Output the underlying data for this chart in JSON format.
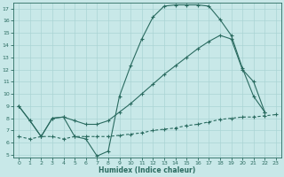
{
  "line1_x": [
    0,
    1,
    2,
    3,
    4,
    5,
    6,
    7,
    8,
    9,
    10,
    11,
    12,
    13,
    14,
    15,
    16,
    17,
    18,
    19,
    20,
    21,
    22,
    23
  ],
  "line1_y": [
    9.0,
    7.8,
    6.5,
    8.0,
    8.1,
    6.5,
    6.3,
    4.9,
    5.3,
    9.8,
    12.3,
    14.5,
    16.3,
    17.2,
    17.3,
    17.3,
    17.3,
    17.2,
    16.1,
    14.8,
    12.1,
    9.8,
    8.5,
    null
  ],
  "line2_x": [
    0,
    1,
    2,
    3,
    4,
    5,
    6,
    7,
    8,
    9,
    10,
    11,
    12,
    13,
    14,
    15,
    16,
    17,
    18,
    19,
    20,
    21,
    22,
    23
  ],
  "line2_y": [
    9.0,
    7.8,
    6.5,
    8.0,
    8.1,
    7.8,
    7.5,
    7.5,
    7.8,
    8.5,
    9.2,
    10.0,
    10.8,
    11.6,
    12.3,
    13.0,
    13.7,
    14.3,
    14.8,
    14.5,
    12.0,
    11.0,
    8.5,
    null
  ],
  "line3_x": [
    0,
    1,
    2,
    3,
    4,
    5,
    6,
    7,
    8,
    9,
    10,
    11,
    12,
    13,
    14,
    15,
    16,
    17,
    18,
    19,
    20,
    21,
    22,
    23
  ],
  "line3_y": [
    6.5,
    6.3,
    6.5,
    6.5,
    6.3,
    6.5,
    6.5,
    6.5,
    6.5,
    6.6,
    6.7,
    6.8,
    7.0,
    7.1,
    7.2,
    7.4,
    7.5,
    7.7,
    7.9,
    8.0,
    8.1,
    8.1,
    8.2,
    8.3
  ],
  "bg_color": "#c8e8e8",
  "grid_color": "#aad4d4",
  "line_color": "#2a6b60",
  "xlabel": "Humidex (Indice chaleur)",
  "xlim": [
    -0.5,
    23.5
  ],
  "ylim": [
    4.8,
    17.5
  ],
  "yticks": [
    5,
    6,
    7,
    8,
    9,
    10,
    11,
    12,
    13,
    14,
    15,
    16,
    17
  ],
  "xticks": [
    0,
    1,
    2,
    3,
    4,
    5,
    6,
    7,
    8,
    9,
    10,
    11,
    12,
    13,
    14,
    15,
    16,
    17,
    18,
    19,
    20,
    21,
    22,
    23
  ]
}
